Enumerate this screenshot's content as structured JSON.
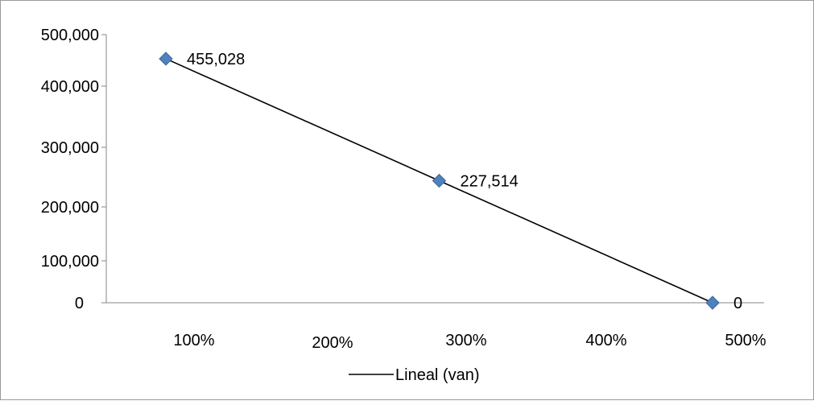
{
  "chart_data": {
    "type": "line",
    "x_categories": [
      "100%",
      "200%",
      "300%",
      "400%",
      "500%"
    ],
    "y_ticks": [
      "0",
      "100,000",
      "200,000",
      "300,000",
      "400,000",
      "500,000"
    ],
    "ylim": [
      0,
      500000
    ],
    "series": [
      {
        "name": "Lineal (van)",
        "color": "#000000",
        "marker_color": "#4f81bd",
        "points": [
          {
            "x": 100,
            "y": 455028,
            "label": "455,028"
          },
          {
            "x": 300,
            "y": 227514,
            "label": "227,514"
          },
          {
            "x": 500,
            "y": 0,
            "label": "0"
          }
        ]
      }
    ],
    "grid": false,
    "legend_position": "bottom"
  }
}
